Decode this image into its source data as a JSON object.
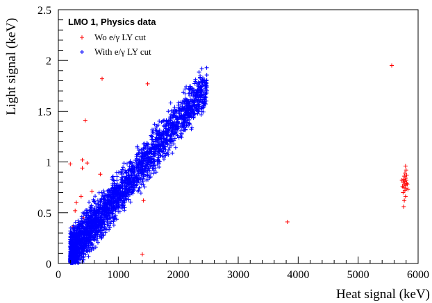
{
  "chart_data": {
    "type": "scatter",
    "title": "LMO 1, Physics data",
    "xlabel": "Heat signal (keV)",
    "ylabel": "Light signal (keV)",
    "xlim": [
      0,
      6000
    ],
    "ylim": [
      0,
      2.5
    ],
    "xticks": [
      "0",
      "1000",
      "2000",
      "3000",
      "4000",
      "5000",
      "6000"
    ],
    "yticks": [
      "0",
      "0.5",
      "1",
      "1.5",
      "2",
      "2.5"
    ],
    "grid": false,
    "legend_position": "top-left",
    "series": [
      {
        "name": "Wo e/γ LY cut",
        "color": "#ff0000",
        "marker": "+",
        "points": [
          [
            200,
            0.98
          ],
          [
            400,
            1.02
          ],
          [
            450,
            1.41
          ],
          [
            730,
            1.82
          ],
          [
            1490,
            1.77
          ],
          [
            400,
            0.94
          ],
          [
            300,
            0.6
          ],
          [
            280,
            0.52
          ],
          [
            480,
            0.99
          ],
          [
            380,
            0.66
          ],
          [
            420,
            0.45
          ],
          [
            700,
            0.88
          ],
          [
            560,
            0.71
          ],
          [
            240,
            0.36
          ],
          [
            350,
            0.3
          ],
          [
            1400,
            0.09
          ],
          [
            1420,
            0.62
          ],
          [
            3820,
            0.41
          ],
          [
            5560,
            1.95
          ],
          [
            5760,
            0.56
          ],
          [
            5770,
            0.62
          ],
          [
            5790,
            0.66
          ],
          [
            5750,
            0.7
          ],
          [
            5780,
            0.72
          ],
          [
            5800,
            0.74
          ],
          [
            5760,
            0.75
          ],
          [
            5790,
            0.77
          ],
          [
            5770,
            0.78
          ],
          [
            5810,
            0.79
          ],
          [
            5750,
            0.8
          ],
          [
            5780,
            0.81
          ],
          [
            5800,
            0.82
          ],
          [
            5760,
            0.83
          ],
          [
            5790,
            0.84
          ],
          [
            5770,
            0.86
          ],
          [
            5810,
            0.87
          ],
          [
            5780,
            0.89
          ],
          [
            5800,
            0.92
          ],
          [
            5790,
            0.96
          ],
          [
            5740,
            0.76
          ],
          [
            5820,
            0.78
          ],
          [
            5730,
            0.82
          ],
          [
            5830,
            0.73
          ]
        ]
      },
      {
        "name": "With e/γ LY cut",
        "color": "#0000ff",
        "marker": "+",
        "band": {
          "x_range": [
            200,
            2480
          ],
          "slope_per_keV": 0.00072,
          "intercept": -0.04,
          "spread": 0.1,
          "n_points": 2600
        }
      }
    ]
  }
}
